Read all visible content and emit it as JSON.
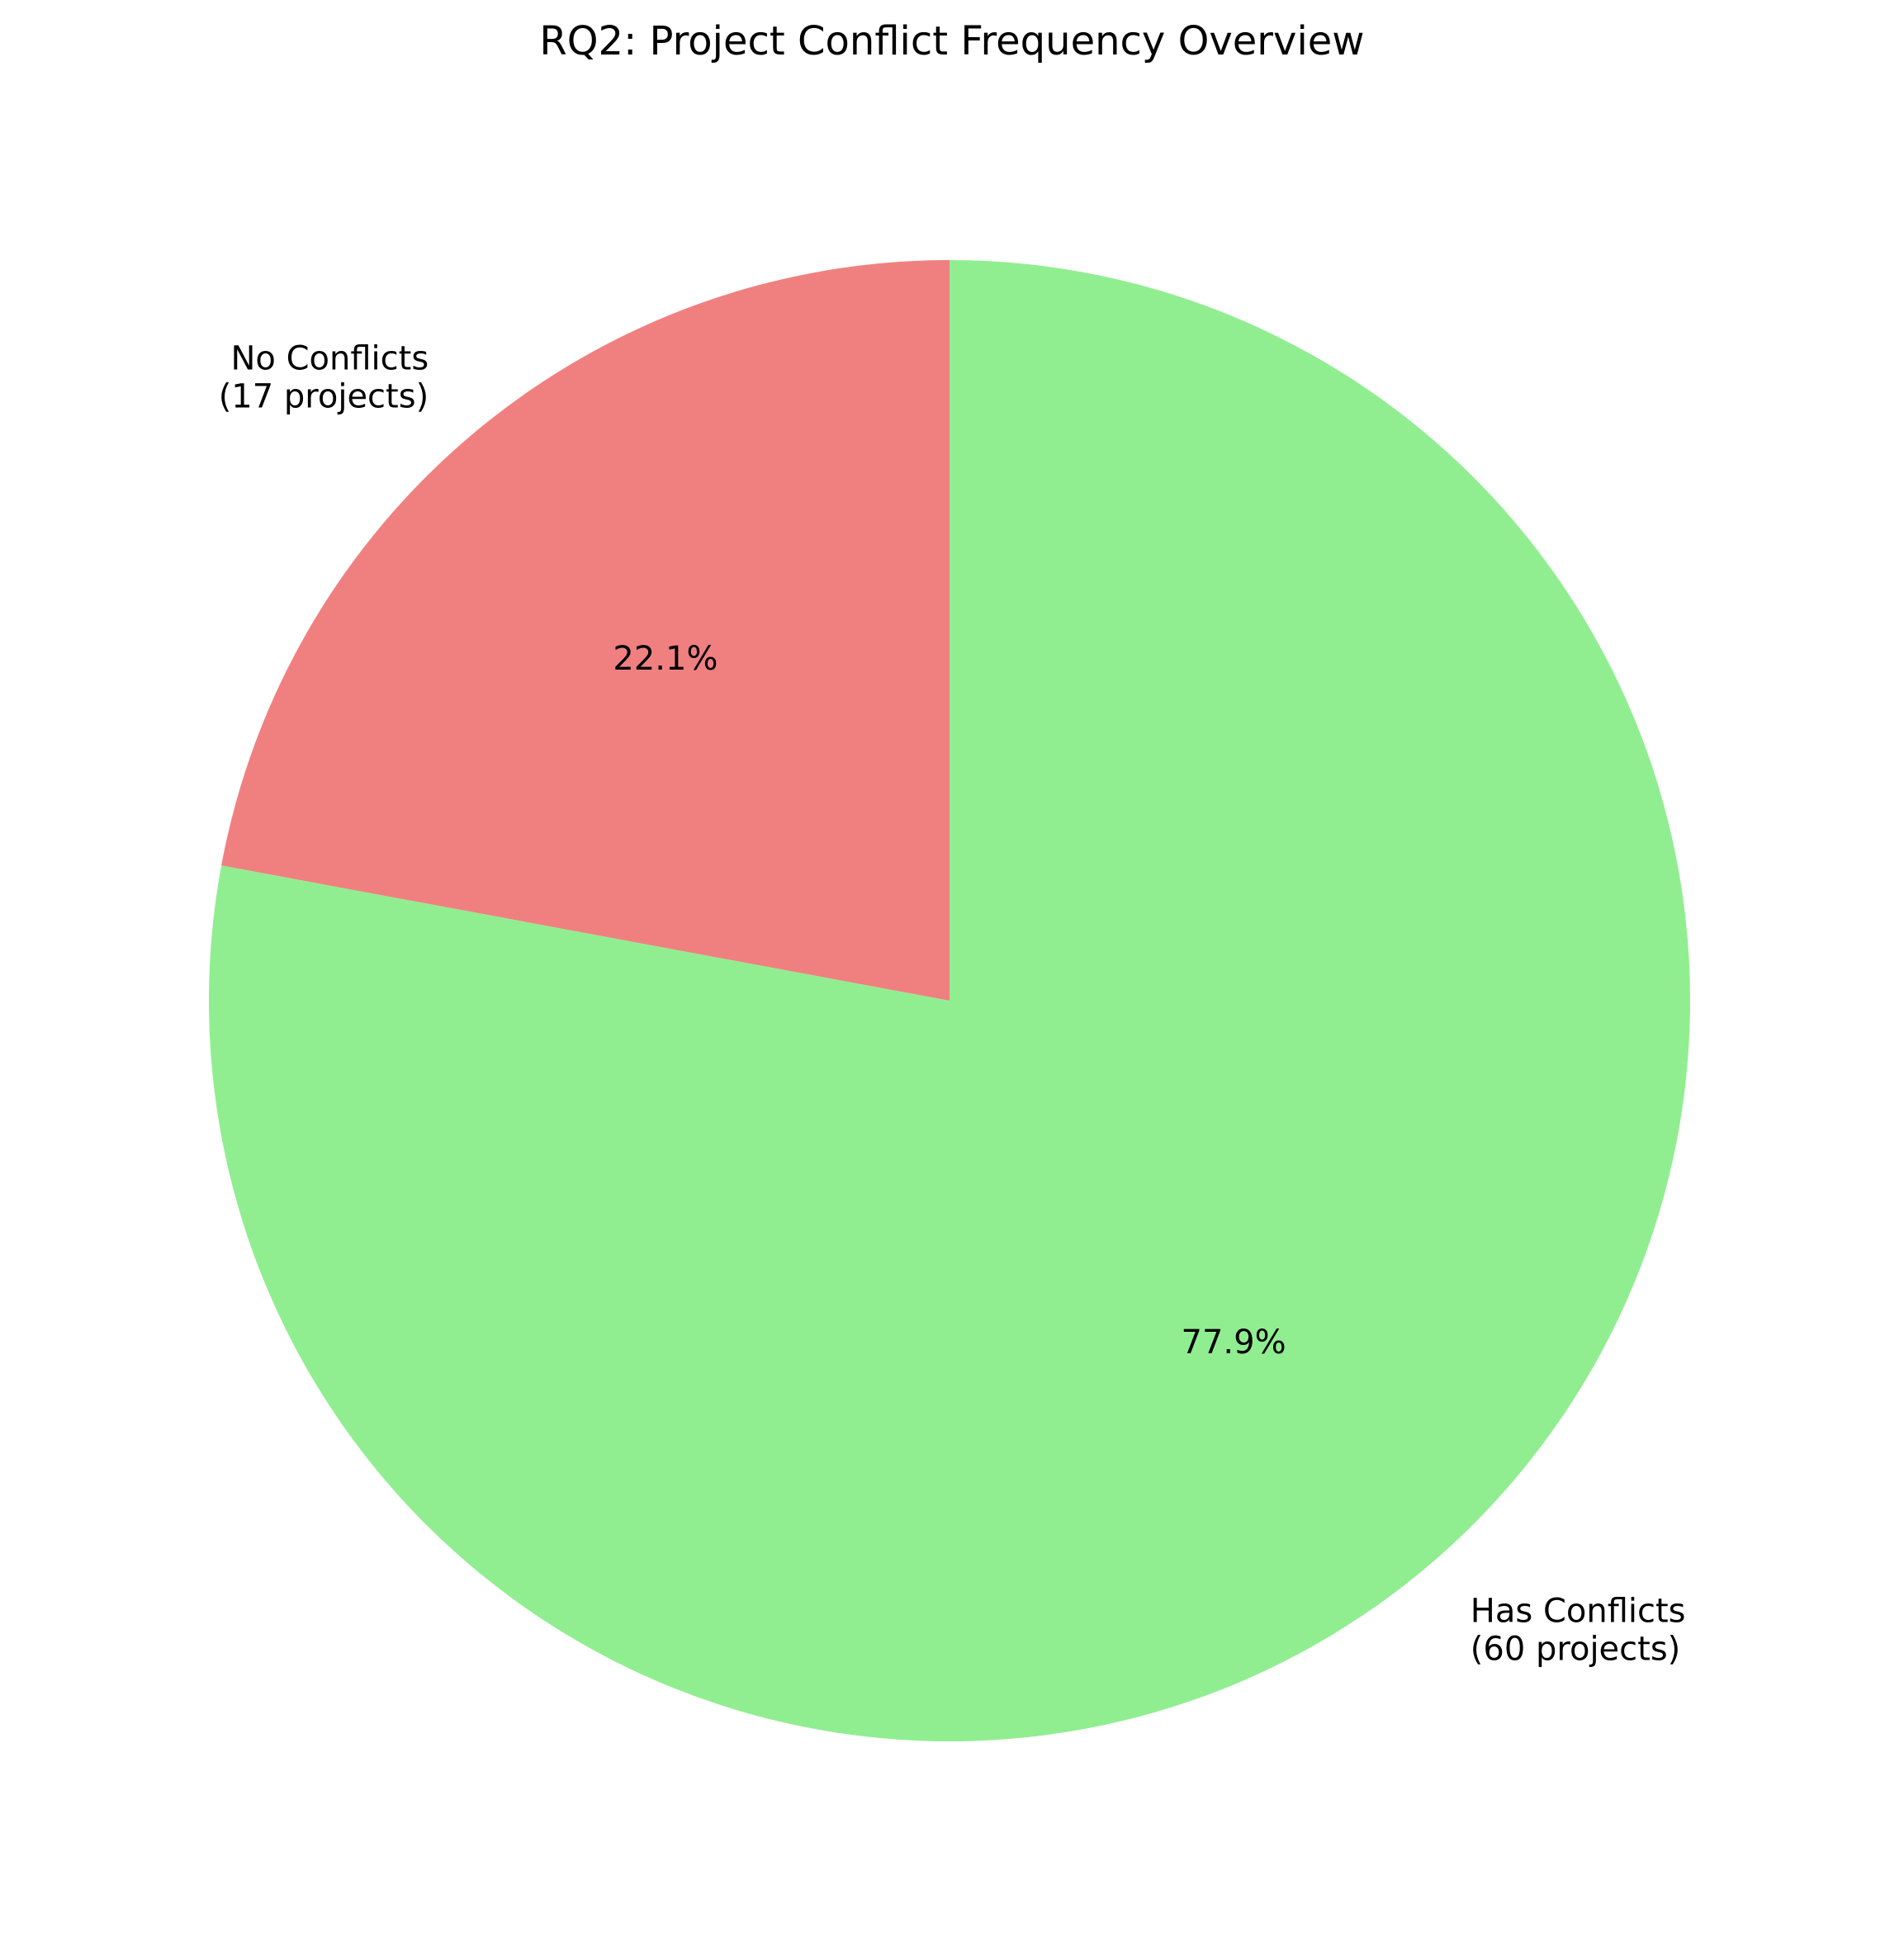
{
  "chart_data": {
    "type": "pie",
    "title": "RQ2: Project Conflict Frequency Overview",
    "slices": [
      {
        "label_line1": "No Conflicts",
        "label_line2": "(17 projects)",
        "value": 17,
        "percent_label": "22.1%",
        "color": "#f08080"
      },
      {
        "label_line1": "Has Conflicts",
        "label_line2": "(60 projects)",
        "value": 60,
        "percent_label": "77.9%",
        "color": "#90ee90"
      }
    ],
    "start_angle_deg": 90,
    "direction": "counterclockwise",
    "legend": "none"
  }
}
